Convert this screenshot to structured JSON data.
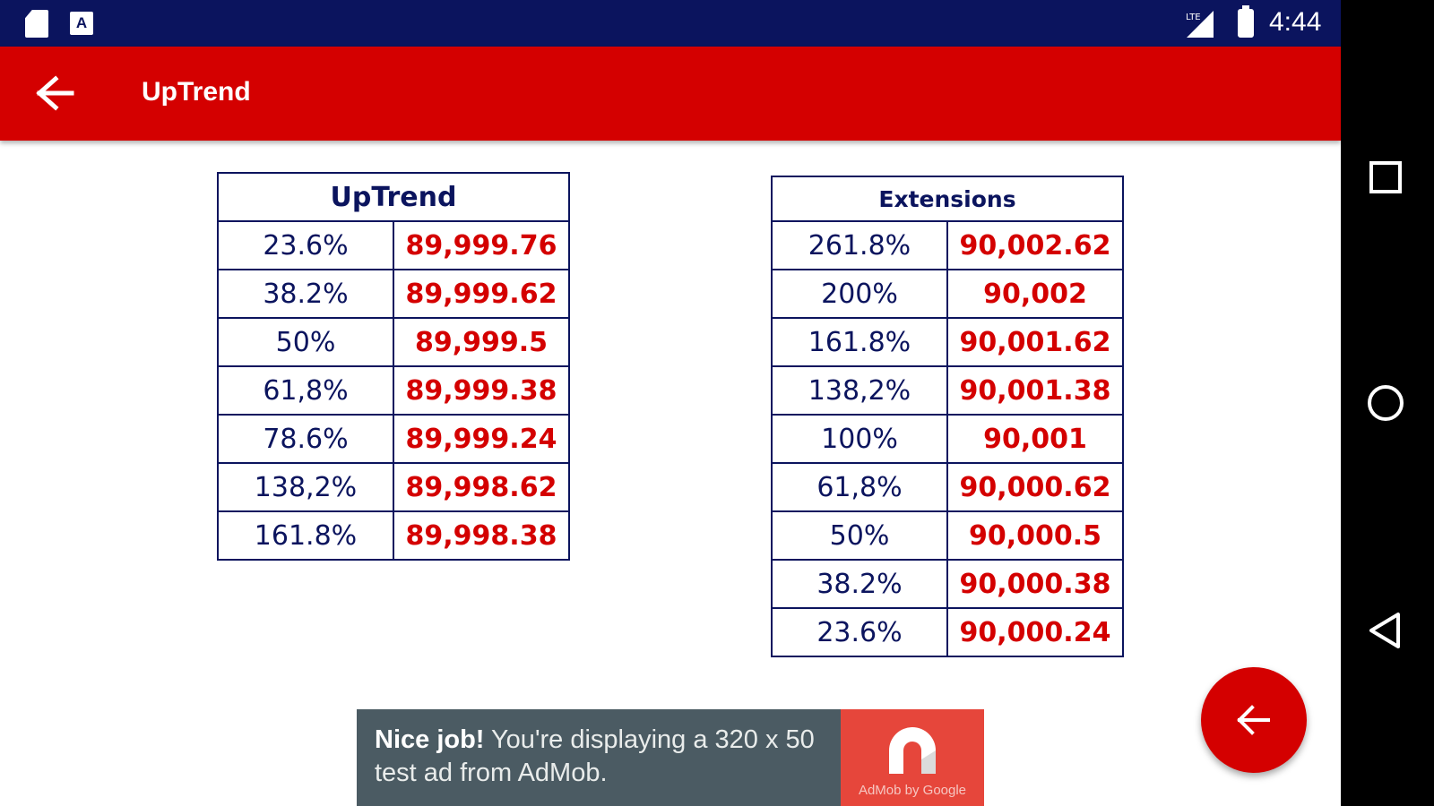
{
  "status_bar": {
    "time": "4:44",
    "icons": [
      "sd-card-icon",
      "a-notification-icon",
      "lte-signal-icon",
      "battery-icon"
    ],
    "a_glyph": "A"
  },
  "app_bar": {
    "title": "UpTrend",
    "back_icon": "arrow-back-icon"
  },
  "uptrend_table": {
    "header": "UpTrend",
    "rows": [
      {
        "pct": "23.6%",
        "value": "89,999.76"
      },
      {
        "pct": "38.2%",
        "value": "89,999.62"
      },
      {
        "pct": "50%",
        "value": "89,999.5"
      },
      {
        "pct": "61,8%",
        "value": "89,999.38"
      },
      {
        "pct": "78.6%",
        "value": "89,999.24"
      },
      {
        "pct": "138,2%",
        "value": "89,998.62"
      },
      {
        "pct": "161.8%",
        "value": "89,998.38"
      }
    ]
  },
  "extensions_table": {
    "header": "Extensions",
    "rows": [
      {
        "pct": "261.8%",
        "value": "90,002.62"
      },
      {
        "pct": "200%",
        "value": "90,002"
      },
      {
        "pct": "161.8%",
        "value": "90,001.62"
      },
      {
        "pct": "138,2%",
        "value": "90,001.38"
      },
      {
        "pct": "100%",
        "value": "90,001"
      },
      {
        "pct": "61,8%",
        "value": "90,000.62"
      },
      {
        "pct": "50%",
        "value": "90,000.5"
      },
      {
        "pct": "38.2%",
        "value": "90,000.38"
      },
      {
        "pct": "23.6%",
        "value": "90,000.24"
      }
    ]
  },
  "ad_banner": {
    "headline": "Nice job!",
    "body": " You're displaying a 320 x 50 test ad from AdMob.",
    "logo_caption": "AdMob by Google"
  },
  "fab": {
    "icon": "arrow-back-icon"
  },
  "nav_bar": {
    "buttons": [
      "recents-square-icon",
      "home-circle-icon",
      "back-triangle-icon"
    ]
  },
  "colors": {
    "status_bar": "#0b145e",
    "app_bar": "#d40000",
    "percent_text": "#0b145e",
    "value_text": "#d40000",
    "ad_background": "#4b5b63",
    "ad_logo": "#e6463b"
  }
}
